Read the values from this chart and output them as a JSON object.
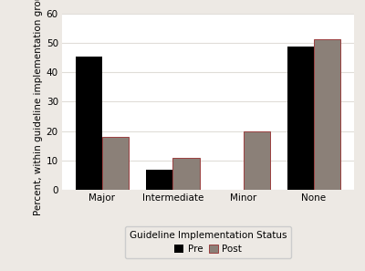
{
  "categories": [
    "Major",
    "Intermediate",
    "Minor",
    "None"
  ],
  "pre_values": [
    45.2,
    6.9,
    0.0,
    48.7
  ],
  "post_values": [
    18.0,
    11.0,
    20.0,
    51.2
  ],
  "pre_color": "#000000",
  "post_color": "#8B8078",
  "post_edge_color": "#9B4040",
  "ylabel": "Percent, within guideline implementation group",
  "xlabel": "Guideline Implementation Status",
  "ylim": [
    0,
    60
  ],
  "yticks": [
    0,
    10,
    20,
    30,
    40,
    50,
    60
  ],
  "legend_labels": [
    "Pre",
    "Post"
  ],
  "bar_width": 0.38,
  "figure_bg": "#ede9e4",
  "plot_bg": "#ffffff",
  "grid_color": "#e0ddd8",
  "axis_fontsize": 7.5,
  "tick_fontsize": 7.5
}
